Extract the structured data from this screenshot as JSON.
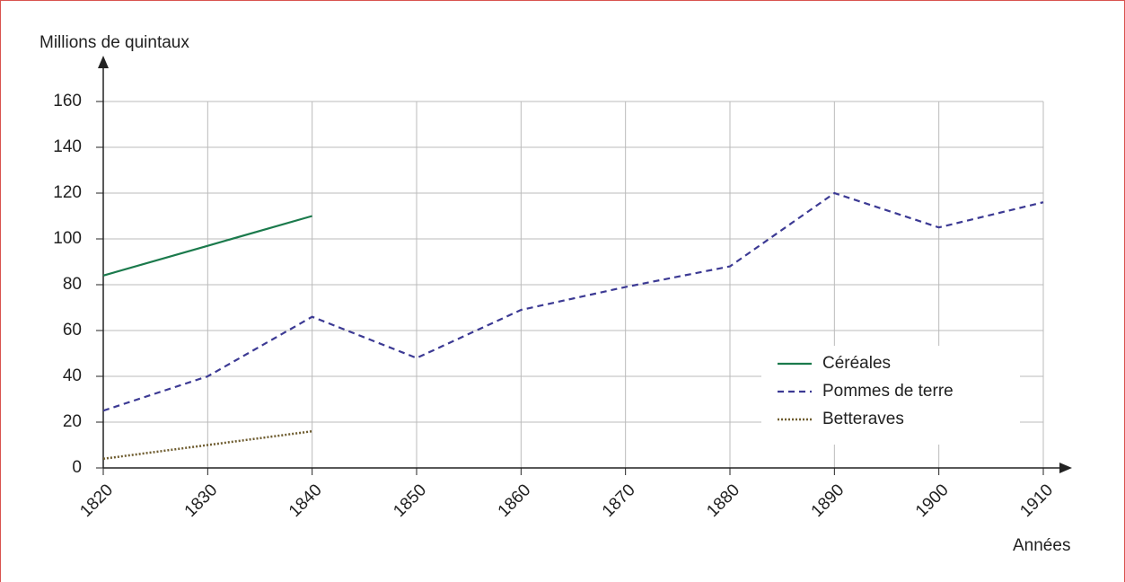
{
  "chart_data": {
    "type": "line",
    "y_label": "Millions de quintaux",
    "x_label": "Années",
    "x": [
      1820,
      1830,
      1840,
      1850,
      1860,
      1870,
      1880,
      1890,
      1900,
      1910
    ],
    "series": [
      {
        "name": "Céréales",
        "color": "#1b7a4c",
        "dash": "solid",
        "values": [
          84,
          97,
          110,
          null,
          null,
          null,
          null,
          null,
          null,
          null
        ]
      },
      {
        "name": "Pommes de terre",
        "color": "#3c3a94",
        "dash": "dashed",
        "values": [
          25,
          40,
          66,
          48,
          69,
          79,
          88,
          120,
          105,
          116
        ]
      },
      {
        "name": "Betteraves",
        "color": "#6e5c2f",
        "dash": "dotted",
        "values": [
          4,
          10,
          16,
          null,
          null,
          null,
          null,
          null,
          null,
          null
        ]
      }
    ],
    "xlim": [
      1820,
      1910
    ],
    "xticks": [
      1820,
      1830,
      1840,
      1850,
      1860,
      1870,
      1880,
      1890,
      1900,
      1910
    ],
    "ylim": [
      0,
      160
    ],
    "yticks": [
      0,
      20,
      40,
      60,
      80,
      100,
      120,
      140,
      160
    ],
    "grid": true,
    "legend": "lower right"
  }
}
